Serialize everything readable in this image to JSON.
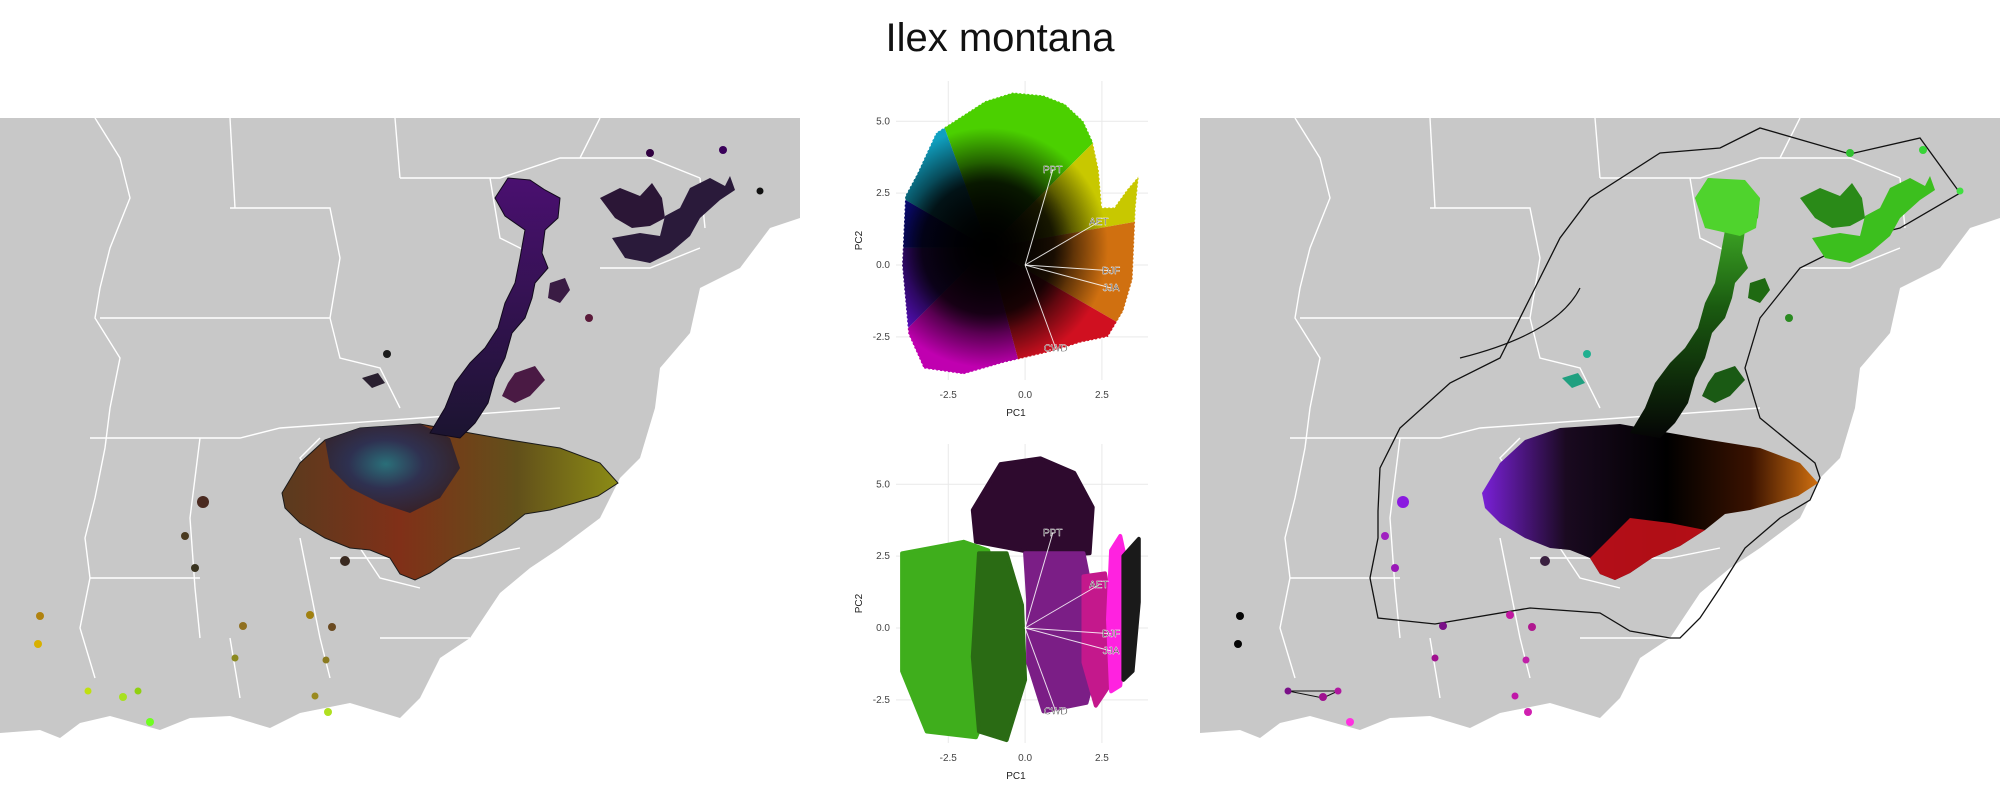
{
  "title": "Ilex montana",
  "chart_data": [
    {
      "type": "scatter",
      "panel": "pca-top",
      "xlabel": "PC1",
      "ylabel": "PC2",
      "xlim": [
        -4.2,
        4.0
      ],
      "ylim": [
        -4.0,
        6.4
      ],
      "x_ticks": [
        -2.5,
        0.0,
        2.5
      ],
      "x_tick_labels": [
        "-2.5",
        "0.0",
        "2.5"
      ],
      "y_ticks": [
        -2.5,
        0.0,
        2.5,
        5.0
      ],
      "y_tick_labels": [
        "-2.5",
        "0.0",
        "2.5",
        "5.0"
      ],
      "grid": true,
      "loadings": [
        {
          "label": "PPT",
          "x": 0.9,
          "y": 3.3
        },
        {
          "label": "AET",
          "x": 2.4,
          "y": 1.5
        },
        {
          "label": "DJF",
          "x": 2.8,
          "y": -0.2
        },
        {
          "label": "JJA",
          "x": 2.8,
          "y": -0.8
        },
        {
          "label": "CWD",
          "x": 1.0,
          "y": -2.9
        }
      ],
      "cloud_outline": [
        [
          -2.9,
          4.6
        ],
        [
          -1.3,
          5.7
        ],
        [
          -0.4,
          6.0
        ],
        [
          0.6,
          5.9
        ],
        [
          1.3,
          5.6
        ],
        [
          1.9,
          5.0
        ],
        [
          2.2,
          4.3
        ],
        [
          2.4,
          3.3
        ],
        [
          2.5,
          2.0
        ],
        [
          2.9,
          2.0
        ],
        [
          3.3,
          2.6
        ],
        [
          3.7,
          3.1
        ],
        [
          3.6,
          2.0
        ],
        [
          3.5,
          -0.5
        ],
        [
          3.2,
          -1.6
        ],
        [
          2.7,
          -2.5
        ],
        [
          1.8,
          -2.7
        ],
        [
          0.9,
          -3.0
        ],
        [
          -0.7,
          -3.4
        ],
        [
          -2.0,
          -3.8
        ],
        [
          -3.3,
          -3.6
        ],
        [
          -3.8,
          -2.4
        ],
        [
          -4.0,
          0.0
        ],
        [
          -3.9,
          2.4
        ],
        [
          -3.5,
          3.2
        ]
      ]
    },
    {
      "type": "scatter",
      "panel": "pca-bottom",
      "xlabel": "PC1",
      "ylabel": "PC2",
      "xlim": [
        -4.2,
        4.0
      ],
      "ylim": [
        -4.0,
        6.4
      ],
      "x_ticks": [
        -2.5,
        0.0,
        2.5
      ],
      "x_tick_labels": [
        "-2.5",
        "0.0",
        "2.5"
      ],
      "y_ticks": [
        -2.5,
        0.0,
        2.5,
        5.0
      ],
      "y_tick_labels": [
        "-2.5",
        "0.0",
        "2.5",
        "5.0"
      ],
      "grid": true,
      "loadings": [
        {
          "label": "PPT",
          "x": 0.9,
          "y": 3.3
        },
        {
          "label": "AET",
          "x": 2.4,
          "y": 1.5
        },
        {
          "label": "DJF",
          "x": 2.8,
          "y": -0.2
        },
        {
          "label": "JJA",
          "x": 2.8,
          "y": -0.8
        },
        {
          "label": "CWD",
          "x": 1.0,
          "y": -2.9
        }
      ],
      "point_groups": [
        {
          "color": "#2e0a2e",
          "outline": [
            [
              -1.7,
              4.1
            ],
            [
              -0.8,
              5.7
            ],
            [
              0.5,
              5.9
            ],
            [
              1.6,
              5.4
            ],
            [
              2.2,
              4.2
            ],
            [
              2.1,
              2.6
            ],
            [
              0.8,
              2.5
            ],
            [
              -0.6,
              2.8
            ],
            [
              -1.6,
              3.0
            ]
          ]
        },
        {
          "color": "#3fae1c",
          "outline": [
            [
              -4.0,
              2.6
            ],
            [
              -2.0,
              3.0
            ],
            [
              -1.2,
              2.7
            ],
            [
              -0.7,
              0.5
            ],
            [
              -0.9,
              -2.0
            ],
            [
              -1.6,
              -3.8
            ],
            [
              -3.2,
              -3.6
            ],
            [
              -4.0,
              -1.5
            ]
          ]
        },
        {
          "color": "#2a6b14",
          "outline": [
            [
              -1.5,
              2.6
            ],
            [
              -0.6,
              2.6
            ],
            [
              -0.1,
              0.8
            ],
            [
              0.0,
              -1.8
            ],
            [
              -0.6,
              -3.9
            ],
            [
              -1.5,
              -3.6
            ],
            [
              -1.7,
              -1.0
            ]
          ]
        },
        {
          "color": "#7b1e86",
          "outline": [
            [
              0.0,
              2.6
            ],
            [
              1.9,
              2.6
            ],
            [
              2.2,
              1.0
            ],
            [
              2.3,
              -1.4
            ],
            [
              2.0,
              -2.6
            ],
            [
              0.6,
              -2.9
            ],
            [
              0.1,
              -1.2
            ],
            [
              0.1,
              1.0
            ]
          ]
        },
        {
          "color": "#c4188c",
          "outline": [
            [
              1.9,
              1.8
            ],
            [
              2.6,
              1.9
            ],
            [
              2.8,
              0.6
            ],
            [
              2.8,
              -1.9
            ],
            [
              2.3,
              -2.7
            ],
            [
              1.9,
              -1.2
            ]
          ]
        },
        {
          "color": "#ff22e0",
          "outline": [
            [
              2.8,
              2.7
            ],
            [
              3.1,
              3.2
            ],
            [
              3.3,
              2.2
            ],
            [
              3.2,
              -0.6
            ],
            [
              3.1,
              -2.0
            ],
            [
              2.8,
              -2.2
            ],
            [
              2.7,
              0.3
            ]
          ]
        },
        {
          "color": "#1a1a1a",
          "outline": [
            [
              3.2,
              2.5
            ],
            [
              3.7,
              3.1
            ],
            [
              3.7,
              0.9
            ],
            [
              3.5,
              -1.5
            ],
            [
              3.2,
              -1.8
            ],
            [
              3.2,
              0.3
            ]
          ]
        }
      ]
    }
  ],
  "colors": {
    "land": "#c8c8c8",
    "border": "#ffffff",
    "grid": "#e9e9e9",
    "axis_text": "#444444"
  }
}
